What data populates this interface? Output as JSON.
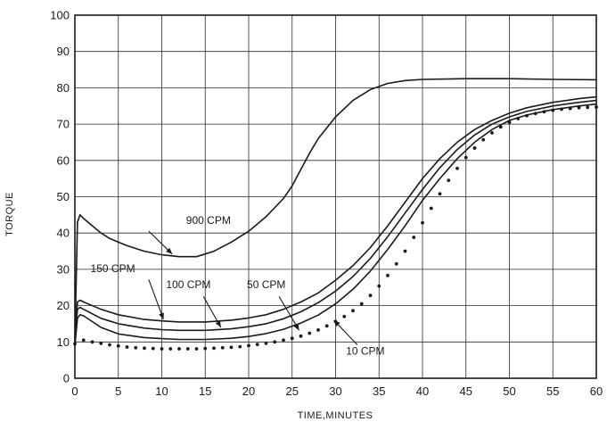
{
  "chart_data": {
    "type": "line",
    "xlabel": "TIME,MINUTES",
    "ylabel": "TORQUE",
    "xlim": [
      0,
      60
    ],
    "ylim": [
      0,
      100
    ],
    "grid": true,
    "x_ticks": [
      "0",
      "5",
      "10",
      "15",
      "20",
      "25",
      "30",
      "35",
      "40",
      "45",
      "50",
      "55",
      "60"
    ],
    "y_ticks": [
      "0",
      "10",
      "20",
      "30",
      "40",
      "50",
      "60",
      "70",
      "80",
      "90",
      "100"
    ],
    "series": [
      {
        "name": "900 CPM",
        "style": "solid",
        "x": [
          0,
          0.3,
          0.6,
          1,
          2,
          3,
          4,
          6,
          8,
          10,
          12,
          14,
          16,
          18,
          20,
          22,
          24,
          25,
          26,
          27,
          28,
          30,
          32,
          34,
          36,
          38,
          40,
          45,
          50,
          55,
          60
        ],
        "y": [
          10,
          43,
          45,
          44,
          42,
          40,
          38.5,
          36.5,
          35,
          34,
          33.5,
          33.5,
          35,
          37.5,
          40.5,
          44.5,
          49.5,
          53,
          57.5,
          62,
          66,
          72,
          76.5,
          79.5,
          81.2,
          82,
          82.3,
          82.5,
          82.5,
          82.3,
          82.2
        ]
      },
      {
        "name": "150 CPM",
        "style": "solid",
        "x": [
          0,
          0.3,
          0.6,
          1,
          3,
          5,
          8,
          10,
          12,
          15,
          18,
          20,
          22,
          24,
          26,
          28,
          30,
          32,
          34,
          36,
          38,
          40,
          42,
          44,
          46,
          48,
          50,
          52,
          55,
          58,
          60
        ],
        "y": [
          11,
          21,
          21.5,
          21,
          19,
          17.5,
          16.2,
          15.8,
          15.5,
          15.5,
          16,
          16.6,
          17.5,
          19,
          21,
          23.5,
          27,
          31,
          36,
          42,
          48.5,
          55,
          60.5,
          65,
          68.5,
          71,
          73,
          74.5,
          76,
          77,
          77.5
        ]
      },
      {
        "name": "100 CPM",
        "style": "solid",
        "x": [
          0,
          0.3,
          0.6,
          1,
          3,
          5,
          8,
          10,
          12,
          15,
          18,
          20,
          22,
          24,
          26,
          28,
          30,
          32,
          34,
          36,
          38,
          40,
          42,
          44,
          46,
          48,
          50,
          52,
          55,
          58,
          60
        ],
        "y": [
          10,
          19,
          19.5,
          19,
          16.5,
          15,
          13.8,
          13.4,
          13.2,
          13.2,
          13.6,
          14.2,
          15,
          16.4,
          18.3,
          20.8,
          24,
          28,
          33,
          39,
          45.5,
          52,
          58,
          63,
          67,
          70,
          72,
          73.5,
          75,
          76,
          76.5
        ]
      },
      {
        "name": "50 CPM",
        "style": "solid",
        "x": [
          0,
          0.3,
          0.6,
          1,
          3,
          5,
          8,
          10,
          12,
          15,
          18,
          20,
          22,
          24,
          26,
          28,
          30,
          32,
          34,
          36,
          38,
          40,
          42,
          44,
          46,
          48,
          50,
          52,
          55,
          58,
          60
        ],
        "y": [
          9,
          16.5,
          17.5,
          17.2,
          14,
          12.2,
          11.2,
          10.9,
          10.7,
          10.7,
          11,
          11.5,
          12.3,
          13.5,
          15.2,
          17.4,
          20.5,
          24.5,
          29.5,
          35.5,
          42,
          49,
          55,
          60.5,
          65,
          68.5,
          71,
          72.5,
          74,
          75,
          75.5
        ]
      },
      {
        "name": "10 CPM",
        "style": "dotted",
        "x": [
          0,
          1,
          2,
          3,
          4,
          5,
          6,
          7,
          8,
          9,
          10,
          11,
          12,
          13,
          14,
          15,
          16,
          17,
          18,
          19,
          20,
          21,
          22,
          23,
          24,
          25,
          26,
          27,
          28,
          29,
          30,
          31,
          32,
          33,
          34,
          35,
          36,
          37,
          38,
          39,
          40,
          41,
          42,
          43,
          44,
          45,
          46,
          47,
          48,
          49,
          50,
          51,
          52,
          53,
          54,
          55,
          56,
          57,
          58,
          59,
          60
        ],
        "y": [
          9.5,
          10.5,
          10,
          9.6,
          9.2,
          8.9,
          8.6,
          8.4,
          8.3,
          8.2,
          8.1,
          8.1,
          8.1,
          8.1,
          8.1,
          8.2,
          8.3,
          8.4,
          8.5,
          8.7,
          9,
          9.3,
          9.6,
          10,
          10.5,
          11,
          11.6,
          12.4,
          13.3,
          14.4,
          15.6,
          17,
          18.6,
          20.5,
          22.8,
          25.4,
          28.3,
          31.5,
          35,
          38.8,
          42.8,
          46.8,
          50.8,
          54.5,
          57.8,
          60.8,
          63.4,
          65.7,
          67.6,
          69.2,
          70.5,
          71.5,
          72.3,
          72.9,
          73.4,
          73.8,
          74.1,
          74.3,
          74.5,
          74.6,
          74.7
        ]
      }
    ],
    "annotations": [
      {
        "text": "900 CPM",
        "label_x": 12.8,
        "label_y": 42.5,
        "anchor_x": 8.5,
        "anchor_y": 40.5,
        "point_x": 11.2,
        "point_y": 34.2
      },
      {
        "text": "150 CPM",
        "label_x": 1.8,
        "label_y": 29.2,
        "anchor_x": 8.5,
        "anchor_y": 27.2,
        "point_x": 10.2,
        "point_y": 16.2
      },
      {
        "text": "100 CPM",
        "label_x": 10.5,
        "label_y": 24.8,
        "anchor_x": 14.8,
        "anchor_y": 22.5,
        "point_x": 16.8,
        "point_y": 14.0
      },
      {
        "text": "50 CPM",
        "label_x": 19.8,
        "label_y": 24.8,
        "anchor_x": 23.5,
        "anchor_y": 22.5,
        "point_x": 25.8,
        "point_y": 13.2
      },
      {
        "text": "10 CPM",
        "label_x": 31.2,
        "label_y": 6.5,
        "anchor_x": 32.5,
        "anchor_y": 9.2,
        "point_x": 29.8,
        "point_y": 16.0
      }
    ]
  }
}
